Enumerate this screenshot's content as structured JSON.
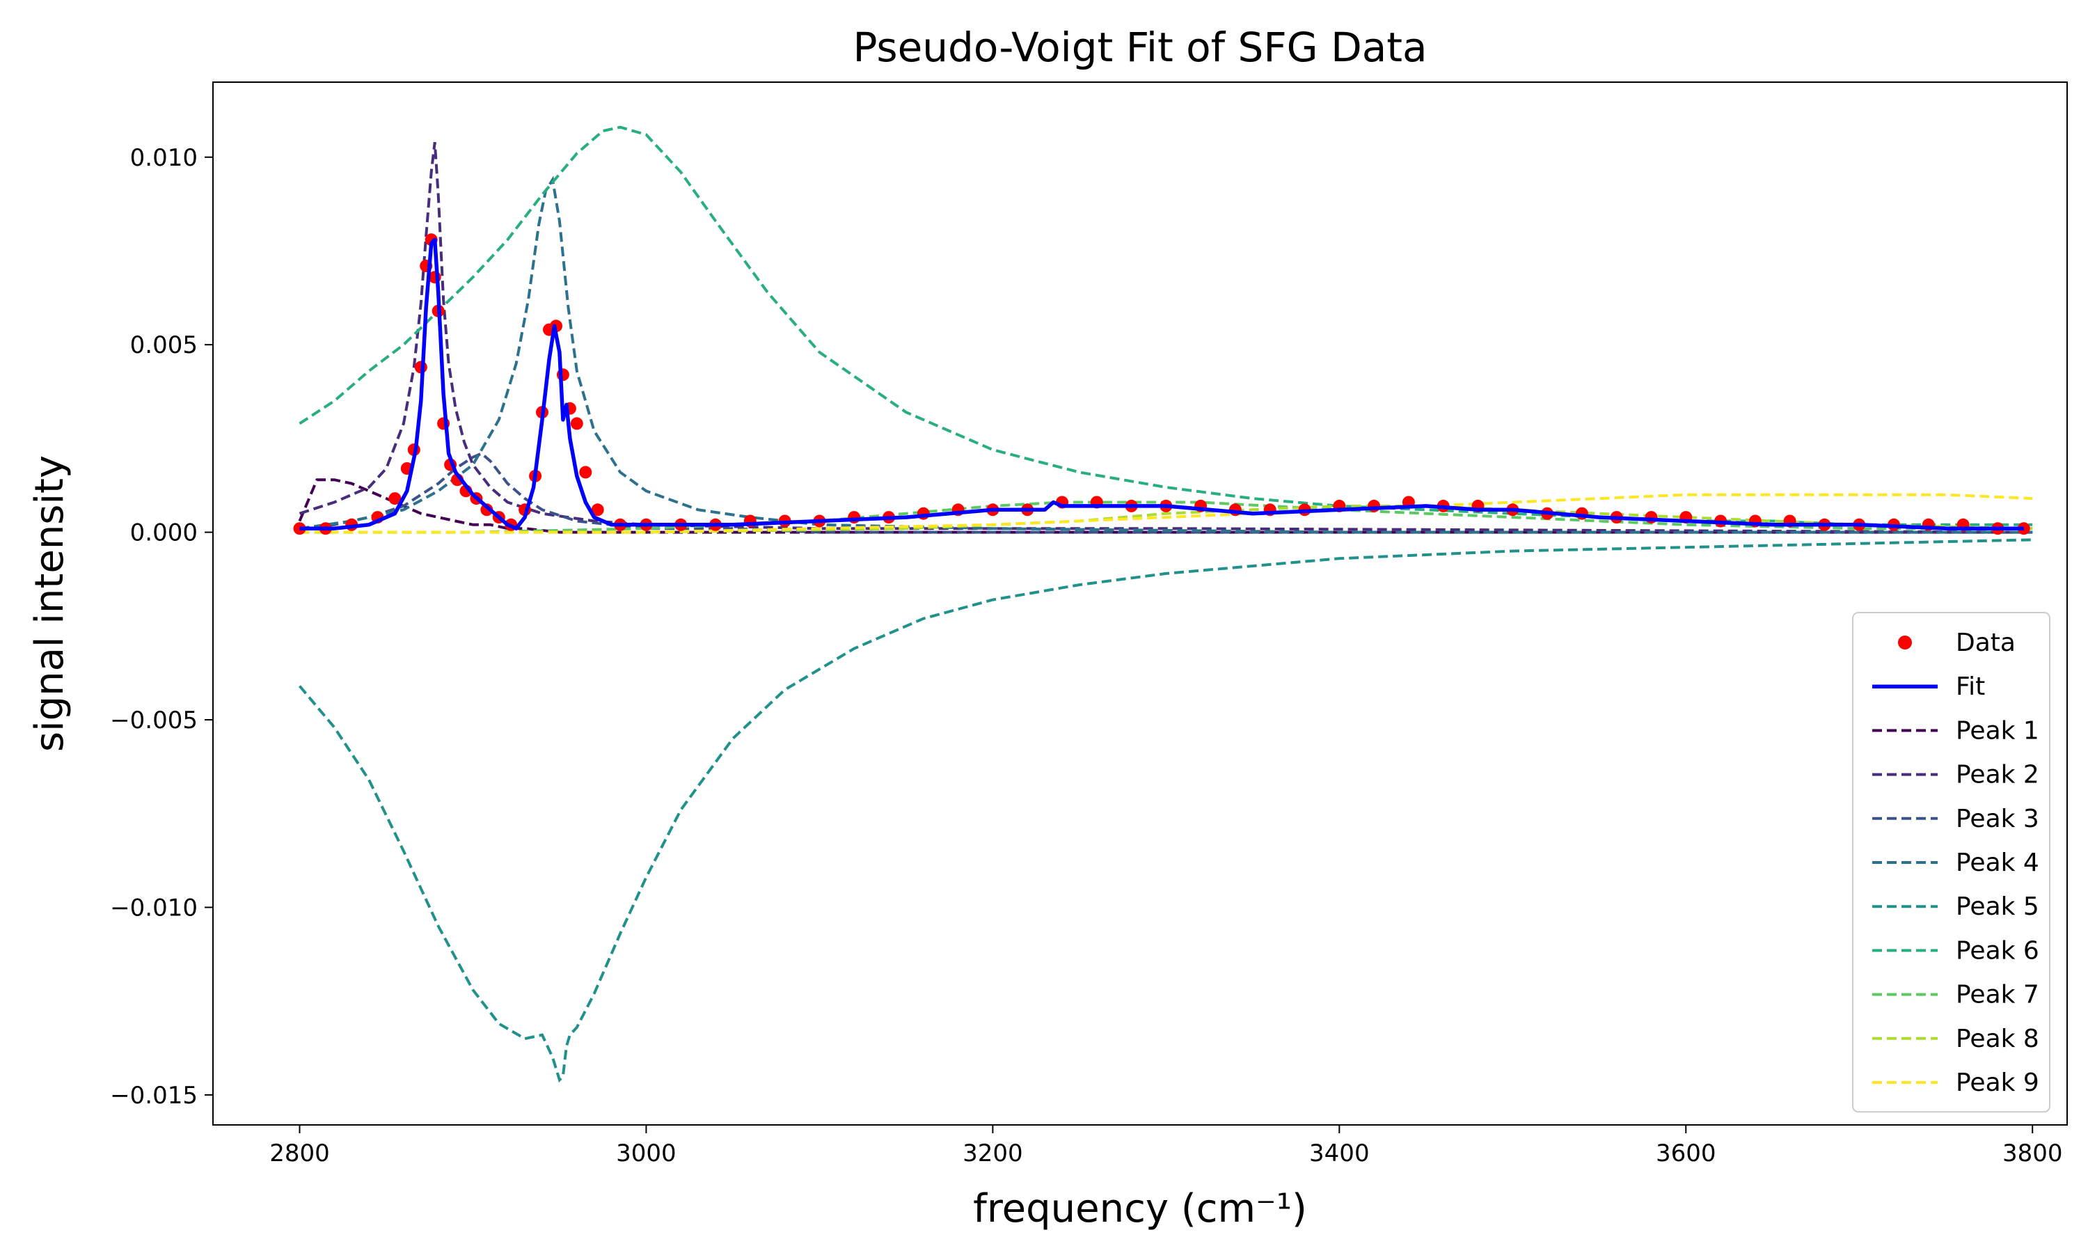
{
  "chart_data": {
    "type": "line",
    "title": "Pseudo-Voigt Fit of SFG Data",
    "xlabel": "frequency (cm⁻¹)",
    "ylabel": "signal intensity",
    "xlim": [
      2750,
      3820
    ],
    "ylim": [
      -0.0158,
      0.012
    ],
    "x_ticks": [
      2800,
      3000,
      3200,
      3400,
      3600,
      3800
    ],
    "x_tick_labels": [
      "2800",
      "3000",
      "3200",
      "3400",
      "3600",
      "3800"
    ],
    "y_ticks": [
      0.01,
      0.005,
      0.0,
      -0.005,
      -0.01,
      -0.015
    ],
    "y_tick_labels": [
      "0.010",
      "0.005",
      "0.000",
      "−0.005",
      "−0.010",
      "−0.015"
    ],
    "legend_position": "lower-right",
    "grid": false,
    "colors": {
      "data": "#ff0000",
      "fit": "#0000ff",
      "peaks": [
        "#440154",
        "#472d7b",
        "#3b528b",
        "#2c728e",
        "#21918c",
        "#28ae80",
        "#5ec962",
        "#addc30",
        "#fde725"
      ]
    },
    "data_series": {
      "name": "Data",
      "x": [
        2800,
        2815,
        2830,
        2845,
        2855,
        2862,
        2866,
        2870,
        2873,
        2876,
        2878,
        2880,
        2883,
        2887,
        2891,
        2896,
        2902,
        2908,
        2915,
        2922,
        2930,
        2936,
        2940,
        2944,
        2948,
        2952,
        2956,
        2960,
        2965,
        2972,
        2985,
        3000,
        3020,
        3040,
        3060,
        3080,
        3100,
        3120,
        3140,
        3160,
        3180,
        3200,
        3220,
        3240,
        3260,
        3280,
        3300,
        3320,
        3340,
        3360,
        3380,
        3400,
        3420,
        3440,
        3460,
        3480,
        3500,
        3520,
        3540,
        3560,
        3580,
        3600,
        3620,
        3640,
        3660,
        3680,
        3700,
        3720,
        3740,
        3760,
        3780,
        3795
      ],
      "y": [
        0.0001,
        0.0001,
        0.0002,
        0.0004,
        0.0009,
        0.0017,
        0.0022,
        0.0044,
        0.0071,
        0.0078,
        0.0068,
        0.0059,
        0.0029,
        0.0018,
        0.0014,
        0.0011,
        0.0009,
        0.0006,
        0.0004,
        0.0002,
        0.0006,
        0.0015,
        0.0032,
        0.0054,
        0.0055,
        0.0042,
        0.0033,
        0.0029,
        0.0016,
        0.0006,
        0.0002,
        0.0002,
        0.0002,
        0.0002,
        0.0003,
        0.0003,
        0.0003,
        0.0004,
        0.0004,
        0.0005,
        0.0006,
        0.0006,
        0.0006,
        0.0008,
        0.0008,
        0.0007,
        0.0007,
        0.0007,
        0.0006,
        0.0006,
        0.0006,
        0.0007,
        0.0007,
        0.0008,
        0.0007,
        0.0007,
        0.0006,
        0.0005,
        0.0005,
        0.0004,
        0.0004,
        0.0004,
        0.0003,
        0.0003,
        0.0003,
        0.0002,
        0.0002,
        0.0002,
        0.0002,
        0.0002,
        0.0001,
        0.0001
      ]
    },
    "fit_series": {
      "name": "Fit",
      "x": [
        2800,
        2820,
        2840,
        2855,
        2862,
        2867,
        2870,
        2873,
        2876,
        2878,
        2880,
        2883,
        2886,
        2890,
        2895,
        2900,
        2905,
        2910,
        2915,
        2920,
        2925,
        2930,
        2935,
        2940,
        2944,
        2947,
        2950,
        2952,
        2954,
        2956,
        2960,
        2965,
        2970,
        2980,
        3000,
        3050,
        3100,
        3150,
        3200,
        3230,
        3235,
        3240,
        3300,
        3350,
        3400,
        3450,
        3480,
        3500,
        3550,
        3600,
        3650,
        3700,
        3750,
        3795
      ],
      "y": [
        0.0001,
        0.0001,
        0.0002,
        0.0005,
        0.0011,
        0.0022,
        0.0035,
        0.006,
        0.0077,
        0.0078,
        0.0064,
        0.0037,
        0.0021,
        0.0016,
        0.0013,
        0.001,
        0.0008,
        0.0006,
        0.0004,
        0.0002,
        0.0001,
        0.0004,
        0.0012,
        0.003,
        0.0046,
        0.0055,
        0.0048,
        0.003,
        0.0034,
        0.0025,
        0.0015,
        0.0008,
        0.0004,
        0.0002,
        0.0002,
        0.0002,
        0.0003,
        0.0004,
        0.0006,
        0.0006,
        0.0008,
        0.0007,
        0.0007,
        0.0005,
        0.0006,
        0.0007,
        0.0006,
        0.0006,
        0.0004,
        0.0003,
        0.0002,
        0.0002,
        0.0001,
        0.0001
      ]
    },
    "peaks": [
      {
        "name": "Peak 1",
        "x": [
          2800,
          2810,
          2820,
          2830,
          2840,
          2850,
          2860,
          2870,
          2880,
          2890,
          2900,
          2910,
          2920,
          2930,
          2950,
          2970,
          3000,
          3100,
          3800
        ],
        "y": [
          0.0003,
          0.0014,
          0.0014,
          0.0013,
          0.0011,
          0.0009,
          0.0007,
          0.0005,
          0.0004,
          0.0003,
          0.0002,
          0.0002,
          0.0001,
          0.0001,
          0.0,
          0.0,
          0.0,
          0.0,
          0.0
        ]
      },
      {
        "name": "Peak 2",
        "x": [
          2800,
          2820,
          2840,
          2850,
          2860,
          2866,
          2870,
          2873,
          2876,
          2878,
          2880,
          2883,
          2886,
          2890,
          2895,
          2900,
          2910,
          2920,
          2940,
          2970,
          3000,
          3100,
          3300,
          3800
        ],
        "y": [
          0.0005,
          0.0008,
          0.0012,
          0.0017,
          0.0029,
          0.0044,
          0.0061,
          0.0079,
          0.0096,
          0.0104,
          0.009,
          0.0062,
          0.0045,
          0.0033,
          0.0024,
          0.0018,
          0.0012,
          0.0008,
          0.0005,
          0.0003,
          0.0002,
          0.0001,
          0.0001,
          0.0
        ]
      },
      {
        "name": "Peak 3",
        "x": [
          2800,
          2820,
          2840,
          2860,
          2870,
          2880,
          2890,
          2900,
          2905,
          2910,
          2920,
          2930,
          2940,
          2960,
          2980,
          3000,
          3050,
          3100,
          3200,
          3800
        ],
        "y": [
          0.0001,
          0.0002,
          0.0004,
          0.0007,
          0.001,
          0.0013,
          0.0017,
          0.002,
          0.0021,
          0.0019,
          0.0013,
          0.0009,
          0.0006,
          0.0003,
          0.0002,
          0.0001,
          0.0001,
          0.0,
          0.0,
          0.0
        ]
      },
      {
        "name": "Peak 4",
        "x": [
          2800,
          2830,
          2860,
          2880,
          2900,
          2915,
          2925,
          2932,
          2938,
          2942,
          2946,
          2950,
          2955,
          2960,
          2970,
          2985,
          3000,
          3030,
          3060,
          3100,
          3200,
          3400,
          3800
        ],
        "y": [
          0.0001,
          0.0003,
          0.0006,
          0.0011,
          0.0018,
          0.003,
          0.0045,
          0.0062,
          0.0082,
          0.0091,
          0.0094,
          0.0083,
          0.006,
          0.0043,
          0.0027,
          0.0016,
          0.0011,
          0.0006,
          0.0004,
          0.0002,
          0.0001,
          0.0,
          0.0
        ]
      },
      {
        "name": "Peak 5",
        "x": [
          2800,
          2820,
          2840,
          2860,
          2880,
          2900,
          2915,
          2930,
          2940,
          2946,
          2950,
          2952,
          2954,
          2956,
          2960,
          2970,
          2985,
          3000,
          3020,
          3050,
          3080,
          3120,
          3160,
          3200,
          3250,
          3300,
          3400,
          3500,
          3600,
          3700,
          3800
        ],
        "y": [
          -0.0041,
          -0.0052,
          -0.0066,
          -0.0085,
          -0.0105,
          -0.0122,
          -0.0131,
          -0.0135,
          -0.0134,
          -0.014,
          -0.0146,
          -0.0145,
          -0.0137,
          -0.0134,
          -0.0132,
          -0.0123,
          -0.0107,
          -0.0092,
          -0.0074,
          -0.0055,
          -0.0042,
          -0.0031,
          -0.0023,
          -0.0018,
          -0.0014,
          -0.0011,
          -0.0007,
          -0.0005,
          -0.0004,
          -0.0003,
          -0.0002
        ]
      },
      {
        "name": "Peak 6",
        "x": [
          2800,
          2820,
          2840,
          2860,
          2880,
          2900,
          2920,
          2940,
          2960,
          2975,
          2985,
          3000,
          3020,
          3040,
          3070,
          3100,
          3150,
          3200,
          3250,
          3300,
          3350,
          3400,
          3450,
          3500,
          3550,
          3600,
          3650,
          3700,
          3750,
          3800
        ],
        "y": [
          0.0029,
          0.0035,
          0.0043,
          0.005,
          0.0059,
          0.0068,
          0.0078,
          0.009,
          0.0101,
          0.0107,
          0.0108,
          0.0106,
          0.0096,
          0.0083,
          0.0064,
          0.0048,
          0.0032,
          0.0022,
          0.0016,
          0.0012,
          0.0009,
          0.0007,
          0.0006,
          0.0005,
          0.0004,
          0.0003,
          0.0003,
          0.0002,
          0.0002,
          0.0002
        ]
      },
      {
        "name": "Peak 7",
        "x": [
          2800,
          2900,
          3000,
          3100,
          3150,
          3200,
          3240,
          3280,
          3320,
          3360,
          3400,
          3450,
          3500,
          3550,
          3600,
          3700,
          3800
        ],
        "y": [
          0.0,
          0.0,
          0.0001,
          0.0003,
          0.0005,
          0.0007,
          0.0008,
          0.0008,
          0.0008,
          0.0007,
          0.0006,
          0.0005,
          0.0004,
          0.0003,
          0.0002,
          0.0001,
          0.0001
        ]
      },
      {
        "name": "Peak 8",
        "x": [
          2800,
          3000,
          3150,
          3250,
          3300,
          3350,
          3400,
          3450,
          3500,
          3550,
          3600,
          3700,
          3800
        ],
        "y": [
          0.0,
          0.0,
          0.0001,
          0.0003,
          0.0005,
          0.0006,
          0.0007,
          0.0007,
          0.0006,
          0.0005,
          0.0004,
          0.0002,
          0.0001
        ]
      },
      {
        "name": "Peak 9",
        "x": [
          2800,
          3000,
          3100,
          3200,
          3300,
          3400,
          3500,
          3600,
          3650,
          3700,
          3750,
          3800
        ],
        "y": [
          0.0,
          0.0,
          0.0001,
          0.0002,
          0.0004,
          0.0006,
          0.0008,
          0.001,
          0.001,
          0.001,
          0.001,
          0.0009
        ]
      }
    ]
  }
}
